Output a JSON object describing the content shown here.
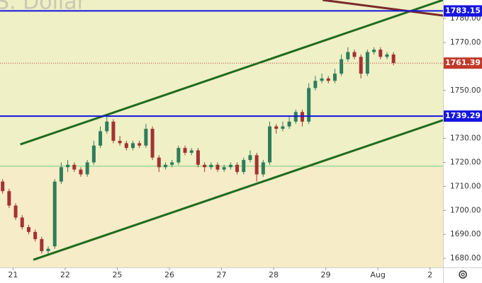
{
  "chart_data": {
    "type": "candlestick",
    "watermark": "S. Dollar",
    "x": [
      -0.2,
      -0.075,
      0.05,
      0.175,
      0.3,
      0.425,
      0.55,
      0.675,
      0.8,
      0.925,
      1.05,
      1.175,
      1.3,
      1.425,
      1.55,
      1.675,
      1.8,
      1.925,
      2.05,
      2.175,
      2.3,
      2.425,
      2.55,
      2.675,
      2.8,
      2.925,
      3.05,
      3.175,
      3.3,
      3.425,
      3.55,
      3.675,
      3.8,
      3.925,
      4.05,
      4.175,
      4.3,
      4.425,
      4.55,
      4.675,
      4.8,
      4.925,
      5.05,
      5.175,
      5.3,
      5.425,
      5.55,
      5.675,
      5.8,
      5.925,
      6.05,
      6.175,
      6.3,
      6.425,
      6.55,
      6.675,
      6.8,
      6.925,
      7.05,
      7.175,
      7.3
    ],
    "open": [
      1712,
      1708,
      1702,
      1697,
      1693,
      1691,
      1688,
      1683,
      1685,
      1712,
      1718,
      1719,
      1717,
      1715,
      1720,
      1727,
      1733,
      1737,
      1729,
      1728,
      1726,
      1728,
      1727,
      1734,
      1722,
      1718,
      1719,
      1720,
      1726,
      1724,
      1725,
      1719,
      1718,
      1719,
      1717,
      1718,
      1719,
      1716,
      1721,
      1723,
      1715,
      1720,
      1735,
      1734,
      1735,
      1737,
      1741,
      1737,
      1751,
      1754,
      1755,
      1754,
      1757,
      1763,
      1766,
      1764,
      1757,
      1766,
      1767,
      1764,
      1765
    ],
    "high": [
      1713,
      1709,
      1703,
      1698,
      1694,
      1692,
      1689,
      1685,
      1713,
      1720,
      1721,
      1720,
      1718,
      1721,
      1729,
      1735,
      1739.5,
      1738,
      1731,
      1729,
      1729,
      1729,
      1736,
      1735,
      1723,
      1720,
      1721,
      1727,
      1727,
      1726,
      1726,
      1720,
      1720,
      1720,
      1719,
      1720,
      1720,
      1722,
      1725,
      1724,
      1721,
      1737,
      1736,
      1737,
      1739,
      1742,
      1742,
      1753,
      1756,
      1757,
      1756,
      1759,
      1765,
      1768,
      1767,
      1765,
      1767,
      1768,
      1768,
      1766,
      1766
    ],
    "low": [
      1707,
      1701,
      1696,
      1692,
      1690,
      1687,
      1682,
      1681,
      1684,
      1711,
      1716,
      1716,
      1714,
      1714,
      1719,
      1726,
      1732,
      1728,
      1727,
      1725,
      1725,
      1726,
      1726,
      1721,
      1716,
      1717,
      1718,
      1719,
      1723,
      1723,
      1718,
      1716,
      1717,
      1716,
      1716,
      1717,
      1715,
      1715,
      1720,
      1712,
      1714,
      1719,
      1732,
      1733,
      1734,
      1736,
      1735,
      1736,
      1750,
      1753,
      1753,
      1753,
      1756,
      1762,
      1763,
      1755,
      1756,
      1765,
      1763,
      1763,
      1760.5
    ],
    "close": [
      1708,
      1702,
      1697,
      1693,
      1691,
      1688,
      1683,
      1684,
      1712,
      1718,
      1719,
      1717,
      1715,
      1720,
      1727,
      1733,
      1737,
      1729,
      1728,
      1726,
      1728,
      1727,
      1734,
      1722,
      1718,
      1719,
      1720,
      1726,
      1724,
      1725,
      1719,
      1718,
      1719,
      1717,
      1718,
      1719,
      1716,
      1721,
      1723,
      1715,
      1720,
      1735,
      1734,
      1735,
      1737,
      1741,
      1737,
      1751,
      1754,
      1755,
      1754,
      1757,
      1763,
      1766,
      1764,
      1757,
      1766,
      1767,
      1764,
      1765,
      1761.39
    ],
    "up_color": "#2e7d5b",
    "down_color": "#a33232",
    "xlim": [
      -0.25,
      8.25
    ],
    "ylim": [
      1676.2,
      1787.7
    ],
    "xticks": [
      {
        "value": 0,
        "label": "21"
      },
      {
        "value": 1,
        "label": "22"
      },
      {
        "value": 2,
        "label": "25"
      },
      {
        "value": 3,
        "label": "26"
      },
      {
        "value": 4,
        "label": "27"
      },
      {
        "value": 5,
        "label": "28"
      },
      {
        "value": 6,
        "label": "29"
      },
      {
        "value": 7,
        "label": "Aug"
      },
      {
        "value": 8,
        "label": "2"
      }
    ],
    "yticks": [
      {
        "value": 1680,
        "label": "1680.00"
      },
      {
        "value": 1690,
        "label": "1690.00"
      },
      {
        "value": 1700,
        "label": "1700.00"
      },
      {
        "value": 1710,
        "label": "1710.00"
      },
      {
        "value": 1720,
        "label": "1720.00"
      },
      {
        "value": 1730,
        "label": "1730.00"
      },
      {
        "value": 1740,
        "label": "1740.00"
      },
      {
        "value": 1750,
        "label": "1750.00"
      },
      {
        "value": 1760,
        "label": "1760.00"
      },
      {
        "value": 1770,
        "label": "1770.00"
      },
      {
        "value": 1780,
        "label": "1780.00"
      }
    ],
    "levels": [
      {
        "value": 1783.15,
        "color": "#1515e0"
      },
      {
        "value": 1739.29,
        "color": "#1515e0"
      }
    ],
    "last_price": {
      "value": 1761.39,
      "color": "#c0392b"
    },
    "reference_line": {
      "value": 1718.4,
      "color": "#6fcf7a",
      "fill_above": "#eff0c6",
      "fill_below": "#f6ecc8"
    },
    "trendlines": [
      {
        "x": [
          0.14,
          8.25
        ],
        "y": [
          1727.5,
          1787.7
        ],
        "color": "#1f6b1f"
      },
      {
        "x": [
          0.39,
          8.25
        ],
        "y": [
          1679.4,
          1737.6
        ],
        "color": "#1f6b1f"
      },
      {
        "x": [
          5.94,
          8.25
        ],
        "y": [
          1787.7,
          1781.2
        ],
        "color": "#7a2a2a"
      }
    ]
  }
}
